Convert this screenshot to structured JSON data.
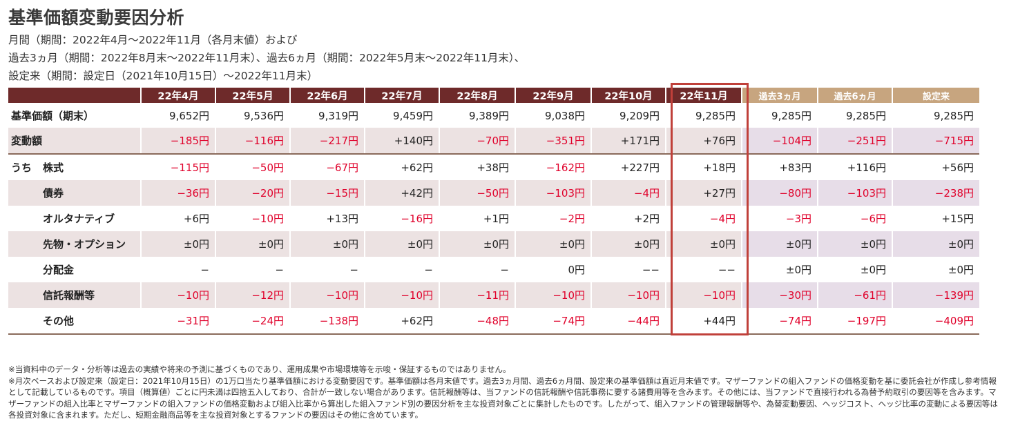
{
  "title": "基準価額変動要因分析",
  "subtitle_lines": [
    "月間（期間：2022年4月～2022年11月（各月末値）および",
    "過去3ヵ月（期間：2022年8月末～2022年11月末）、過去6ヵ月（期間：2022年5月末～2022年11月末）、",
    "設定来（期間：設定日（2021年10月15日）～2022年11月末）"
  ],
  "table": {
    "columns": [
      "22年4月",
      "22年5月",
      "22年6月",
      "22年7月",
      "22年8月",
      "22年9月",
      "22年10月",
      "22年11月",
      "過去3ヵ月",
      "過去6ヵ月",
      "設定来"
    ],
    "highlight_column": "22年11月",
    "uchi_label": "うち",
    "rows": [
      {
        "label": "基準価額（期末）",
        "values": [
          "9,652円",
          "9,536円",
          "9,319円",
          "9,459円",
          "9,389円",
          "9,038円",
          "9,209円",
          "9,285円",
          "9,285円",
          "9,285円",
          "9,285円"
        ]
      },
      {
        "label": "変動額",
        "values": [
          "−185円",
          "−116円",
          "−217円",
          "+140円",
          "−70円",
          "−351円",
          "+171円",
          "+76円",
          "−104円",
          "−251円",
          "−715円"
        ]
      },
      {
        "label": "株式",
        "values": [
          "−115円",
          "−50円",
          "−67円",
          "+62円",
          "+38円",
          "−162円",
          "+227円",
          "+18円",
          "+83円",
          "+116円",
          "+56円"
        ]
      },
      {
        "label": "債券",
        "values": [
          "−36円",
          "−20円",
          "−15円",
          "+42円",
          "−50円",
          "−103円",
          "−4円",
          "+27円",
          "−80円",
          "−103円",
          "−238円"
        ]
      },
      {
        "label": "オルタナティブ",
        "values": [
          "+6円",
          "−10円",
          "+13円",
          "−16円",
          "+1円",
          "−2円",
          "+2円",
          "−4円",
          "−3円",
          "−6円",
          "+15円"
        ]
      },
      {
        "label": "先物・オプション",
        "values": [
          "±0円",
          "±0円",
          "±0円",
          "±0円",
          "±0円",
          "±0円",
          "±0円",
          "±0円",
          "±0円",
          "±0円",
          "±0円"
        ]
      },
      {
        "label": "分配金",
        "values": [
          "−",
          "−",
          "−",
          "−",
          "−",
          "0円",
          "−−",
          "−−",
          "±0円",
          "±0円",
          "±0円"
        ]
      },
      {
        "label": "信託報酬等",
        "values": [
          "−10円",
          "−12円",
          "−10円",
          "−10円",
          "−11円",
          "−10円",
          "−10円",
          "−10円",
          "−30円",
          "−61円",
          "−139円"
        ]
      },
      {
        "label": "その他",
        "values": [
          "−31円",
          "−24円",
          "−138円",
          "+62円",
          "−48円",
          "−74円",
          "−44円",
          "+44円",
          "−74円",
          "−197円",
          "−409円"
        ]
      }
    ]
  },
  "notes": [
    "※当資料中のデータ・分析等は過去の実績や将来の予測に基づくものであり、運用成果や市場環境等を示唆・保証するものではありません。",
    "※月次ベースおよび設定来（設定日：2021年10月15日）の1万口当たり基準価額における変動要因です。基準価額は各月末値です。過去3ヵ月間、過去6ヵ月間、設定来の基準価額は直近月末値です。マザーファンドの組入ファンドの価格変動を基に委託会社が作成し参考情報として記載しているものです。項目（概算値）ごとに円未満は四捨五入しており、合計が一致しない場合があります。信託報酬等は、当ファンドの信託報酬や信託事務に要する諸費用等を含みます。その他には、当ファンドで直接行われる為替予約取引の要因等を含みます。マザーファンドの組入比率とマザーファンドの組入ファンドの価格変動および組入比率から算出した組入ファンド別の要因分析を主な投資対象ごとに集計したものです。したがって、組入ファンドの管理報酬等や、為替変動要因、ヘッジコスト、ヘッジ比率の変動による要因等は各投資対象に含まれます。ただし、短期金融商品等を主な投資対象とするファンドの要因はその他に含めています。"
  ],
  "colors": {
    "header_bg": "#6e2a2a",
    "summary_header_bg": "#c7a57f",
    "negative": "#e0002a",
    "highlight_border": "#c0403a",
    "band": "#ece2e2"
  }
}
